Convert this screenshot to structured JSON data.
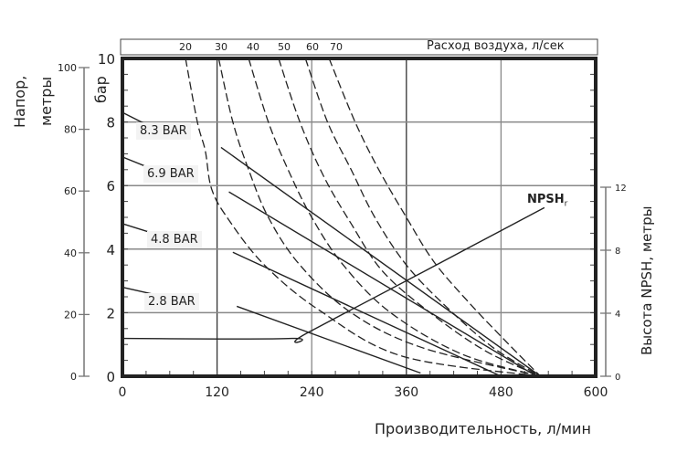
{
  "chart_data": {
    "type": "line",
    "title": "",
    "xlabel": "Производительность, л/мин",
    "ylabel_left_outer": "Напор, метры",
    "ylabel_left_inner": "бар",
    "ylabel_right": "Высота NPSH, метры",
    "top_axis_label": "Расход воздуха, л/сек",
    "xlim": [
      0,
      600
    ],
    "ylim_bar": [
      0,
      10
    ],
    "ylim_meters": [
      0,
      100
    ],
    "ylim_npsh": [
      0,
      12
    ],
    "x_ticks": [
      "0",
      "120",
      "240",
      "360",
      "480",
      "600"
    ],
    "y_ticks_bar": [
      "0",
      "2",
      "4",
      "6",
      "8",
      "10"
    ],
    "y_ticks_meters": [
      "0",
      "20",
      "40",
      "60",
      "80",
      "100"
    ],
    "y_ticks_npsh": [
      "0",
      "4",
      "8",
      "12"
    ],
    "top_ticks": [
      "20",
      "30",
      "40",
      "50",
      "60",
      "70"
    ],
    "grid": true,
    "pressure_series": [
      {
        "name": "8.3 BAR",
        "points": [
          [
            0,
            8.3
          ],
          [
            40,
            7.8
          ],
          [
            125,
            7.2
          ],
          [
            530,
            0
          ]
        ]
      },
      {
        "name": "6.9 BAR",
        "points": [
          [
            0,
            6.9
          ],
          [
            45,
            6.45
          ],
          [
            135,
            5.8
          ],
          [
            525,
            0
          ]
        ]
      },
      {
        "name": "4.8 BAR",
        "points": [
          [
            0,
            4.8
          ],
          [
            45,
            4.45
          ],
          [
            140,
            3.9
          ],
          [
            480,
            0
          ]
        ]
      },
      {
        "name": "2.8 BAR",
        "points": [
          [
            0,
            2.8
          ],
          [
            45,
            2.55
          ],
          [
            145,
            2.2
          ],
          [
            378,
            0.1
          ]
        ]
      }
    ],
    "air_flow_series": [
      {
        "name": "20",
        "points": [
          [
            80,
            10
          ],
          [
            95,
            8
          ],
          [
            105,
            7.1
          ],
          [
            113,
            5.9
          ],
          [
            134,
            4.95
          ],
          [
            180,
            3.5
          ],
          [
            250,
            2.07
          ],
          [
            355,
            0.63
          ],
          [
            530,
            0
          ]
        ]
      },
      {
        "name": "30",
        "points": [
          [
            122,
            10
          ],
          [
            140,
            8
          ],
          [
            160,
            6.5
          ],
          [
            185,
            5
          ],
          [
            225,
            3.5
          ],
          [
            290,
            2
          ],
          [
            380,
            0.9
          ],
          [
            530,
            0
          ]
        ]
      },
      {
        "name": "40",
        "points": [
          [
            160,
            10
          ],
          [
            185,
            8
          ],
          [
            210,
            6.5
          ],
          [
            240,
            5
          ],
          [
            280,
            3.5
          ],
          [
            340,
            2
          ],
          [
            430,
            0.7
          ],
          [
            530,
            0
          ]
        ]
      },
      {
        "name": "50",
        "points": [
          [
            198,
            10
          ],
          [
            225,
            8
          ],
          [
            255,
            6.3
          ],
          [
            290,
            4.8
          ],
          [
            330,
            3.3
          ],
          [
            390,
            2
          ],
          [
            460,
            0.8
          ],
          [
            530,
            0
          ]
        ]
      },
      {
        "name": "60",
        "points": [
          [
            232,
            10
          ],
          [
            260,
            8
          ],
          [
            290,
            6.5
          ],
          [
            320,
            5
          ],
          [
            360,
            3.5
          ],
          [
            410,
            2.2
          ],
          [
            470,
            0.9
          ],
          [
            530,
            0
          ]
        ]
      },
      {
        "name": "70",
        "points": [
          [
            262,
            10
          ],
          [
            295,
            8
          ],
          [
            325,
            6.5
          ],
          [
            360,
            5
          ],
          [
            395,
            3.6
          ],
          [
            440,
            2.3
          ],
          [
            490,
            1
          ],
          [
            530,
            0
          ]
        ]
      }
    ],
    "npsh_series": {
      "name": "NPSHr",
      "points_npsh_m": [
        [
          0,
          2.4
        ],
        [
          215,
          2.4
        ],
        [
          240,
          2.9
        ],
        [
          535,
          10.7
        ]
      ]
    }
  },
  "labels": {
    "head_label": "Напор,",
    "meters_label": "метры",
    "bar_label": "бар",
    "npsh_axis_label": "Высота NPSH, метры",
    "x_axis_label": "Производительность, л/мин",
    "top_axis_label": "Расход воздуха, л/сек",
    "npsh_curve_label": "NPSH",
    "npsh_curve_sub": "r",
    "bar_labels": [
      "8.3 BAR",
      "6.9 BAR",
      "4.8 BAR",
      "2.8 BAR"
    ]
  }
}
